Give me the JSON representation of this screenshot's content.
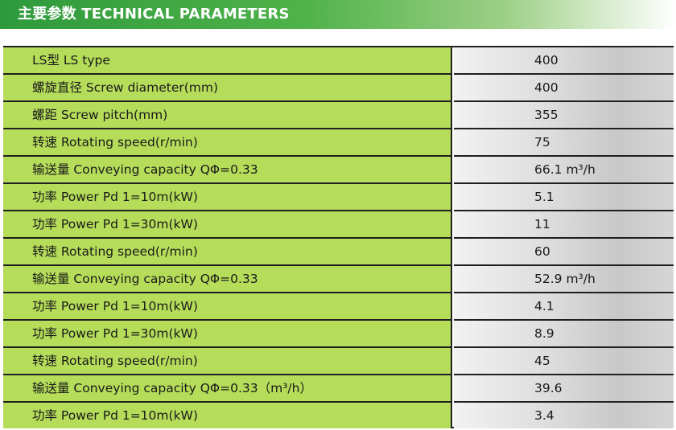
{
  "header": {
    "title": "主要参数  TECHNICAL PARAMETERS"
  },
  "table": {
    "rows": [
      {
        "label": "LS型 LS type",
        "value": "400"
      },
      {
        "label": "螺旋直径 Screw diameter(mm)",
        "value": "400"
      },
      {
        "label": "螺距 Screw pitch(mm)",
        "value": "355"
      },
      {
        "label": "转速 Rotating speed(r/min)",
        "value": "75"
      },
      {
        "label": "输送量 Conveying capacity QΦ=0.33",
        "value": "66.1 m³/h"
      },
      {
        "label": "功率 Power Pd 1=10m(kW)",
        "value": "5.1"
      },
      {
        "label": "功率 Power Pd 1=30m(kW)",
        "value": "11"
      },
      {
        "label": "转速 Rotating speed(r/min)",
        "value": "60"
      },
      {
        "label": "输送量 Conveying capacity QΦ=0.33",
        "value": "52.9 m³/h"
      },
      {
        "label": "功率 Power Pd 1=10m(kW)",
        "value": "4.1"
      },
      {
        "label": "功率 Power Pd 1=30m(kW)",
        "value": "8.9"
      },
      {
        "label": "转速 Rotating speed(r/min)",
        "value": "45"
      },
      {
        "label": "输送量 Conveying capacity QΦ=0.33（m³/h）",
        "value": "39.6"
      },
      {
        "label": "功率 Power Pd 1=10m(kW)",
        "value": "3.4"
      }
    ]
  },
  "colors": {
    "header_green": "#2e9a3c",
    "label_green": "#b5dd5a",
    "value_gray": "#d6d6d6",
    "rule": "#1f1f1f"
  }
}
